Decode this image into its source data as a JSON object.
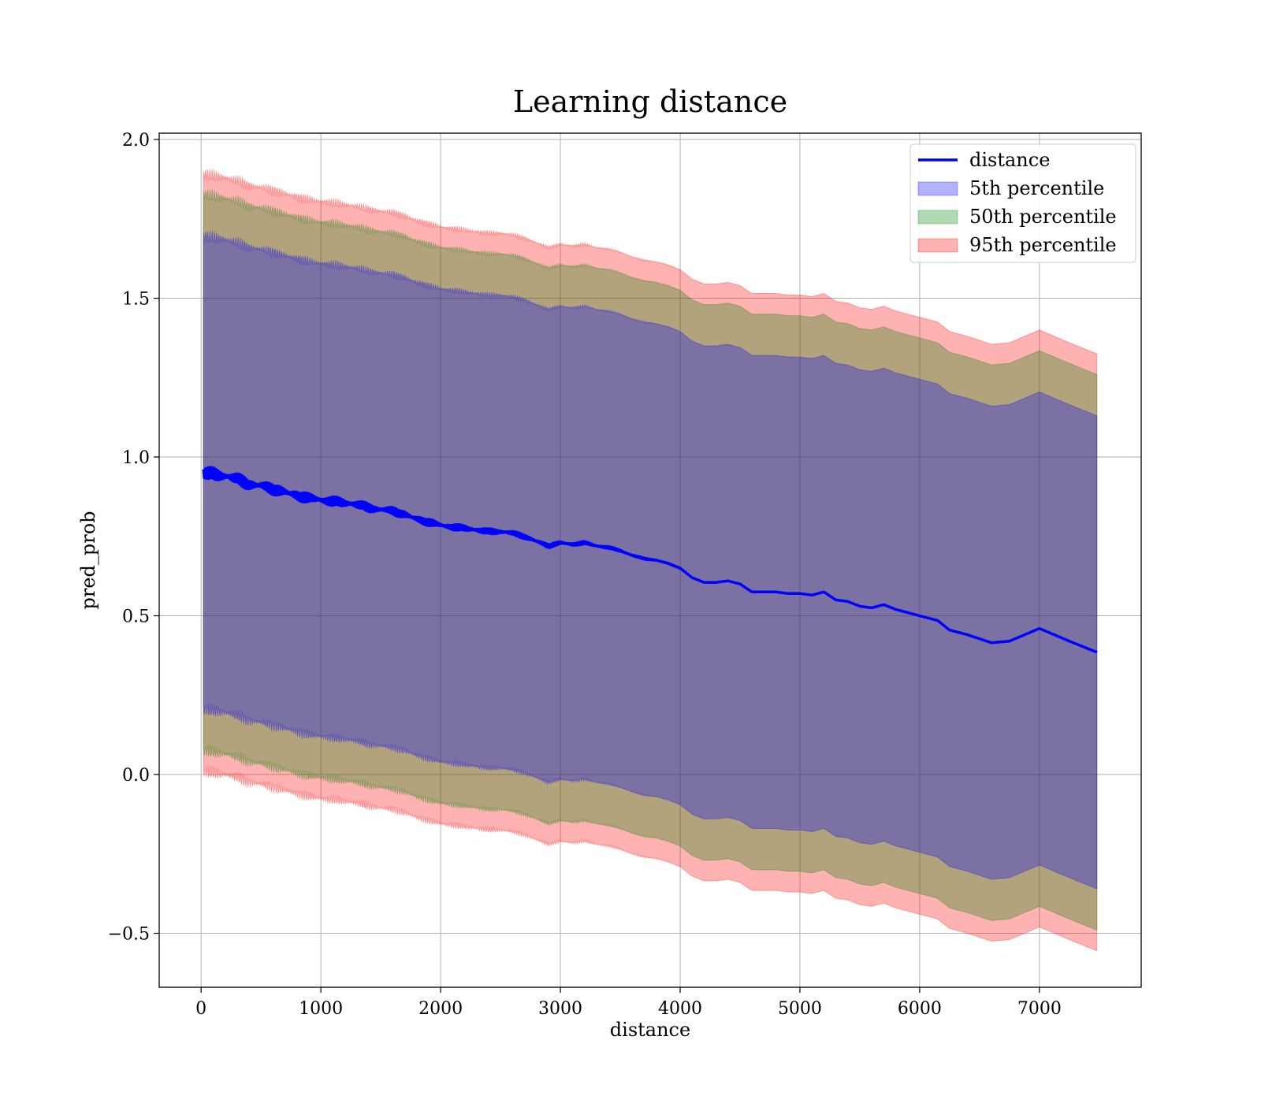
{
  "chart_data": {
    "type": "area",
    "title": "Learning distance",
    "xlabel": "distance",
    "ylabel": "pred_prob",
    "xlim": [
      -350,
      7850
    ],
    "ylim": [
      -0.67,
      2.02
    ],
    "x_ticks": [
      0,
      1000,
      2000,
      3000,
      4000,
      5000,
      6000,
      7000
    ],
    "x_tick_labels": [
      "0",
      "1000",
      "2000",
      "3000",
      "4000",
      "5000",
      "6000",
      "7000"
    ],
    "y_ticks": [
      -0.5,
      0.0,
      0.5,
      1.0,
      1.5,
      2.0
    ],
    "y_tick_labels": [
      "−0.5",
      "0.0",
      "0.5",
      "1.0",
      "1.5",
      "2.0"
    ],
    "grid": true,
    "legend_position": "top-right",
    "legend": [
      "distance",
      "5th percentile",
      "50th percentile",
      "95th percentile"
    ],
    "line_series": {
      "name": "distance",
      "color": "#0000ff",
      "x": [
        20,
        100,
        200,
        300,
        400,
        500,
        600,
        700,
        800,
        900,
        1000,
        1100,
        1200,
        1300,
        1400,
        1500,
        1600,
        1700,
        1800,
        1900,
        2000,
        2100,
        2200,
        2300,
        2400,
        2500,
        2600,
        2700,
        2800,
        2900,
        3000,
        3100,
        3200,
        3300,
        3400,
        3500,
        3600,
        3700,
        3800,
        3900,
        4000,
        4100,
        4200,
        4300,
        4400,
        4500,
        4600,
        4700,
        4800,
        4900,
        5000,
        5100,
        5200,
        5300,
        5400,
        5500,
        5600,
        5700,
        5800,
        5900,
        6000,
        6150,
        6250,
        6400,
        6600,
        6750,
        7000,
        7250,
        7480
      ],
      "y": [
        0.95,
        0.945,
        0.94,
        0.93,
        0.915,
        0.91,
        0.9,
        0.89,
        0.88,
        0.87,
        0.865,
        0.86,
        0.855,
        0.85,
        0.84,
        0.835,
        0.83,
        0.82,
        0.805,
        0.795,
        0.785,
        0.78,
        0.775,
        0.77,
        0.765,
        0.765,
        0.76,
        0.75,
        0.735,
        0.72,
        0.73,
        0.725,
        0.73,
        0.72,
        0.715,
        0.705,
        0.69,
        0.68,
        0.675,
        0.665,
        0.65,
        0.62,
        0.605,
        0.605,
        0.61,
        0.6,
        0.575,
        0.575,
        0.575,
        0.57,
        0.57,
        0.565,
        0.575,
        0.55,
        0.545,
        0.53,
        0.525,
        0.535,
        0.52,
        0.51,
        0.5,
        0.485,
        0.455,
        0.44,
        0.415,
        0.42,
        0.46,
        0.42,
        0.385
      ]
    },
    "band_series": [
      {
        "name": "5th percentile",
        "color": "#0000ff",
        "offset": 0.745
      },
      {
        "name": "50th percentile",
        "color": "#008000",
        "offset": 0.875
      },
      {
        "name": "95th percentile",
        "color": "#ff0000",
        "offset": 0.94
      }
    ]
  }
}
